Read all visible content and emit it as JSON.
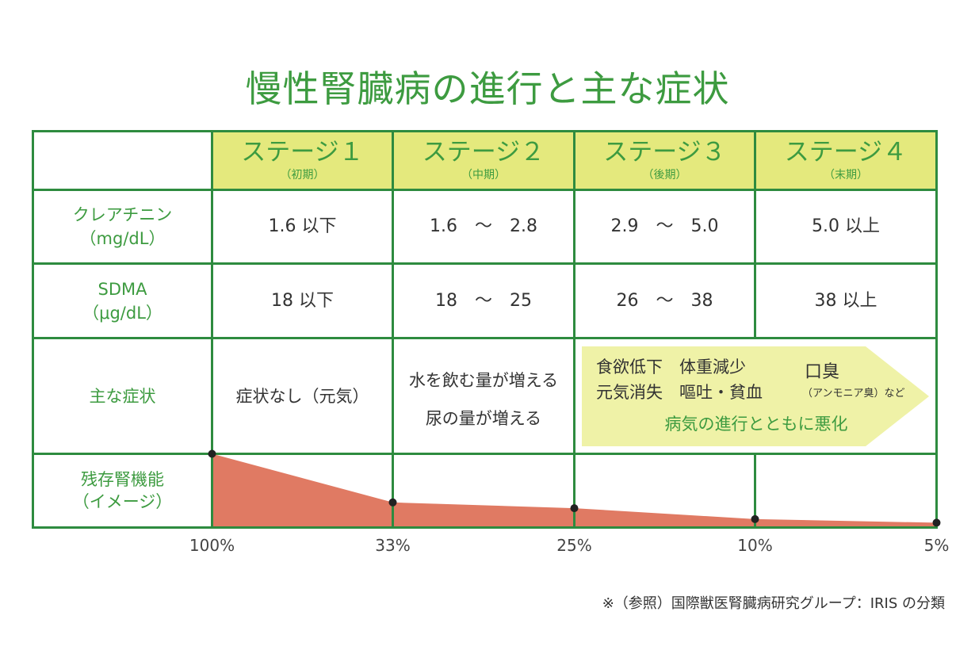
{
  "title": "慢性腎臓病の進行と主な症状",
  "header": {
    "stages": [
      {
        "name": "ステージ１",
        "period": "（初期）"
      },
      {
        "name": "ステージ２",
        "period": "（中期）"
      },
      {
        "name": "ステージ３",
        "period": "（後期）"
      },
      {
        "name": "ステージ４",
        "period": "（末期）"
      }
    ]
  },
  "rows": {
    "creatinine": {
      "label": "クレアチニン",
      "unit": "（mg/dL）",
      "values": [
        "1.6 以下",
        "1.6　～　2.8",
        "2.9　～　5.0",
        "5.0 以上"
      ]
    },
    "sdma": {
      "label": "SDMA",
      "unit": "（μg/dL）",
      "values": [
        "18 以下",
        "18　～　25",
        "26　～　38",
        "38 以上"
      ]
    },
    "symptoms": {
      "label": "主な症状",
      "stage1": "症状なし（元気）",
      "stage2": [
        "水を飲む量が増える",
        "尿の量が増える"
      ],
      "late": {
        "line1": "食欲低下　体重減少",
        "line2": "元気消失　嘔吐・貧血",
        "breath": "口臭",
        "breath_note": "（アンモニア臭）など",
        "progress": "病気の進行とともに悪化"
      }
    },
    "function": {
      "label": "残存腎機能",
      "note": "（イメージ）"
    }
  },
  "chart_data": {
    "type": "area",
    "x": [
      "100%",
      "33%",
      "25%",
      "10%",
      "5%"
    ],
    "values": [
      100,
      33,
      25,
      10,
      5
    ],
    "ylim": [
      0,
      100
    ]
  },
  "footnote": "※（参照）国際獣医腎臓病研究グループ：IRIS の分類",
  "colors": {
    "green": "#3d9b40",
    "border": "#2e8b3f",
    "header_bg": "#e4e97d",
    "arrow_bg": "#eff2a7",
    "area": "#e07a63",
    "text": "#333333",
    "dot": "#222222"
  }
}
